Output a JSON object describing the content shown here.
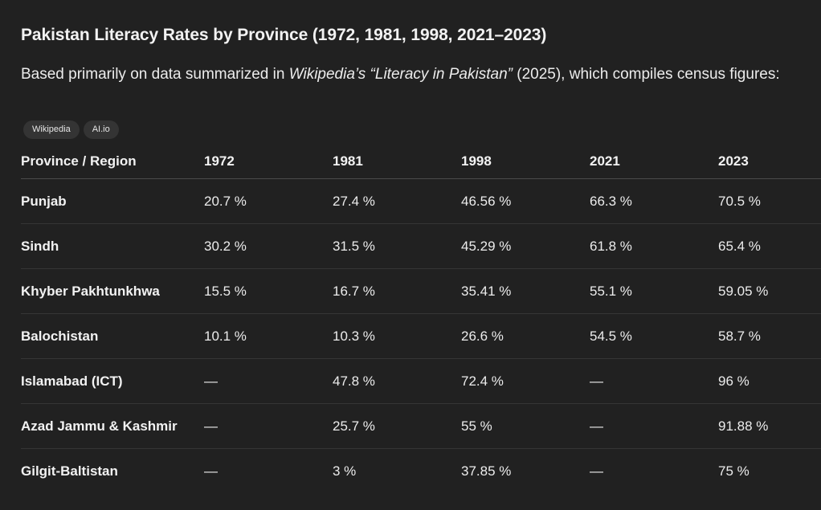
{
  "heading": "Pakistan Literacy Rates by Province (1972, 1981, 1998, 2021–2023)",
  "intro": {
    "part1": "Based primarily on data summarized in ",
    "source_italic": "Wikipedia’s “Literacy in Pakistan”",
    "part2": " (2025), which compiles census figures:"
  },
  "sources": [
    {
      "label": "Wikipedia"
    },
    {
      "label": "AI.io"
    }
  ],
  "table": {
    "headers": [
      "Province / Region",
      "1972",
      "1981",
      "1998",
      "2021",
      "2023"
    ],
    "rows": [
      {
        "region": "Punjab",
        "values": [
          "20.7 %",
          "27.4 %",
          "46.56 %",
          "66.3 %",
          "70.5 %"
        ]
      },
      {
        "region": "Sindh",
        "values": [
          "30.2 %",
          "31.5 %",
          "45.29 %",
          "61.8 %",
          "65.4 %"
        ]
      },
      {
        "region": "Khyber Pakhtunkhwa",
        "values": [
          "15.5 %",
          "16.7 %",
          "35.41 %",
          "55.1 %",
          "59.05 %"
        ]
      },
      {
        "region": "Balochistan",
        "values": [
          "10.1 %",
          "10.3 %",
          "26.6 %",
          "54.5 %",
          "58.7 %"
        ]
      },
      {
        "region": "Islamabad (ICT)",
        "values": [
          "—",
          "47.8 %",
          "72.4 %",
          "—",
          "96 %"
        ]
      },
      {
        "region": "Azad Jammu & Kashmir",
        "values": [
          "—",
          "25.7 %",
          "55 %",
          "—",
          "91.88 %"
        ]
      },
      {
        "region": "Gilgit-Baltistan",
        "values": [
          "—",
          "3 %",
          "37.85 %",
          "—",
          "75 %"
        ]
      }
    ]
  }
}
